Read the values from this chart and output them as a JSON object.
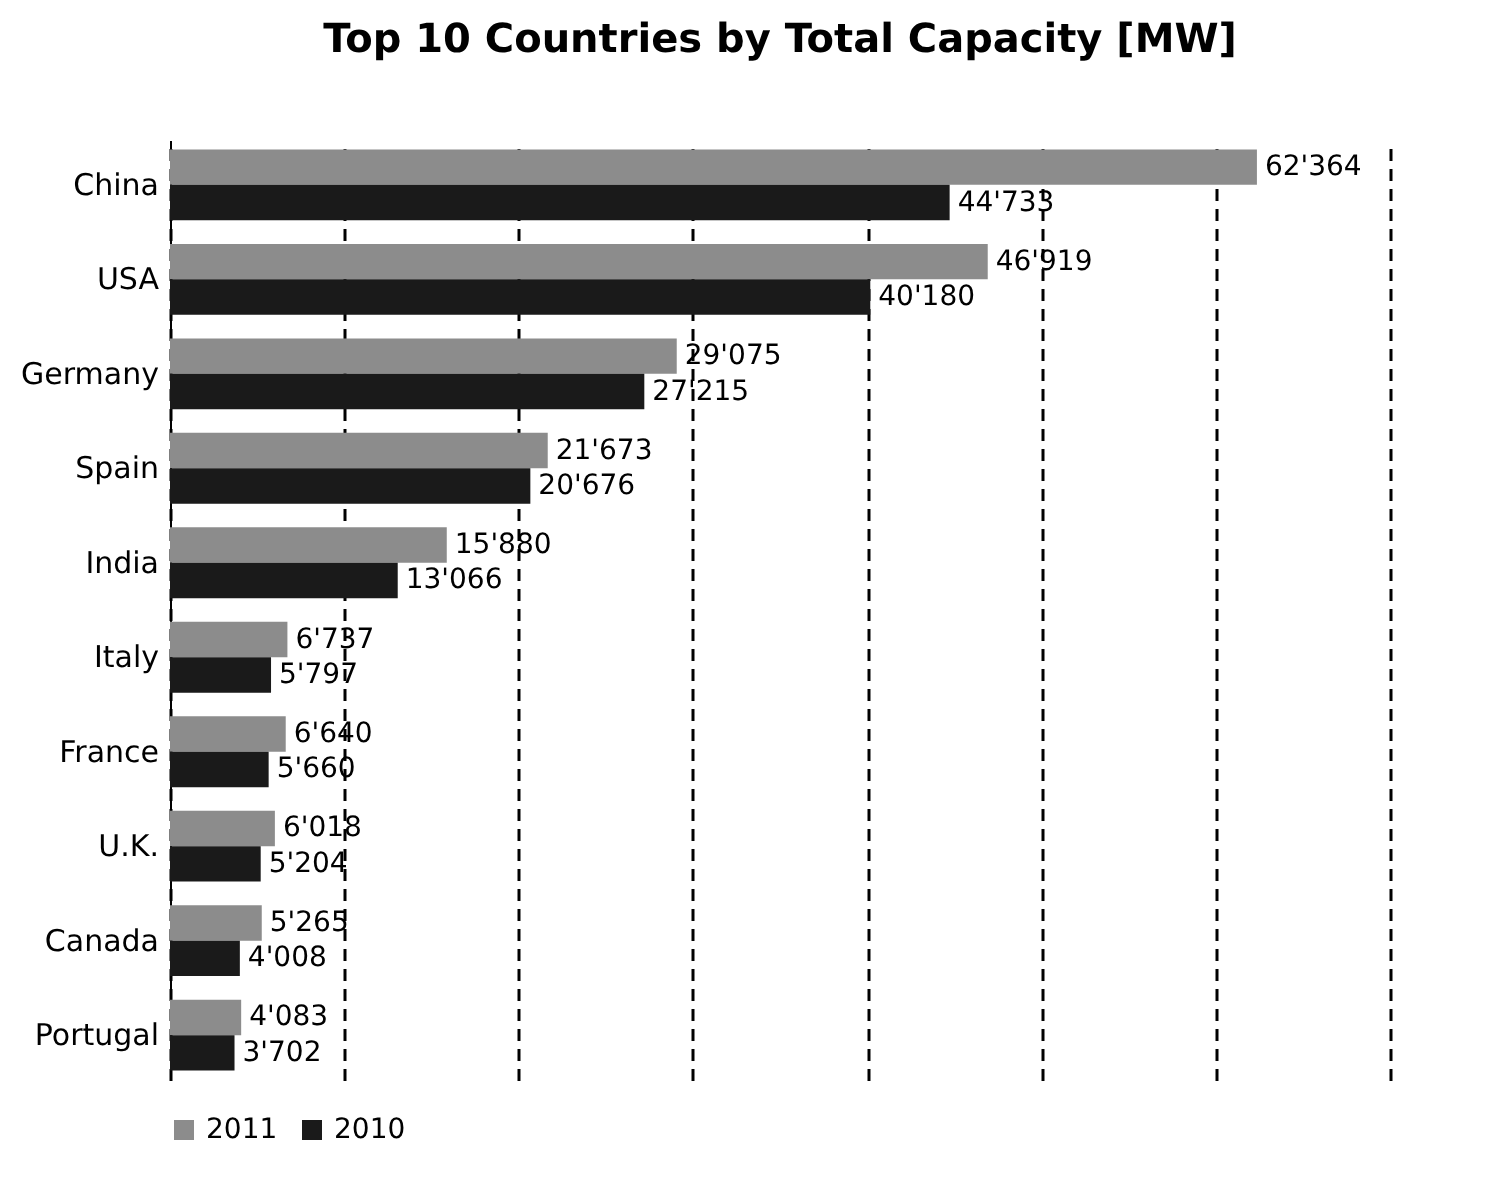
{
  "chart_data": {
    "type": "bar",
    "orientation": "horizontal",
    "title": "Top 10 Countries by Total Capacity [MW]",
    "categories": [
      "China",
      "USA",
      "Germany",
      "Spain",
      "India",
      "Italy",
      "France",
      "U.K.",
      "Canada",
      "Portugal"
    ],
    "series": [
      {
        "name": "2011",
        "color": "#8c8c8c",
        "values": [
          62364,
          46919,
          29075,
          21673,
          15880,
          6737,
          6640,
          6018,
          5265,
          4083
        ],
        "value_labels": [
          "62'364",
          "46'919",
          "29'075",
          "21'673",
          "15'880",
          "6'737",
          "6'640",
          "6'018",
          "5'265",
          "4'083"
        ]
      },
      {
        "name": "2010",
        "color": "#1a1a1a",
        "values": [
          44733,
          40180,
          27215,
          20676,
          13066,
          5797,
          5660,
          5204,
          4008,
          3702
        ],
        "value_labels": [
          "44'733",
          "40'180",
          "27'215",
          "20'676",
          "13'066",
          "5'797",
          "5'660",
          "5'204",
          "4'008",
          "3'702"
        ]
      }
    ],
    "xlim": [
      0,
      70000
    ],
    "xticks": [
      {
        "value": 0,
        "label": null
      },
      {
        "value": 10000,
        "label": null
      },
      {
        "value": 20000,
        "label": null
      },
      {
        "value": 30000,
        "label": null
      },
      {
        "value": 40000,
        "label": null
      },
      {
        "value": 50000,
        "label": null
      },
      {
        "value": 60000,
        "label": null
      },
      {
        "value": 70000,
        "label": null
      }
    ],
    "grid": "x",
    "tick_labels": "y",
    "legend": "bottom"
  }
}
